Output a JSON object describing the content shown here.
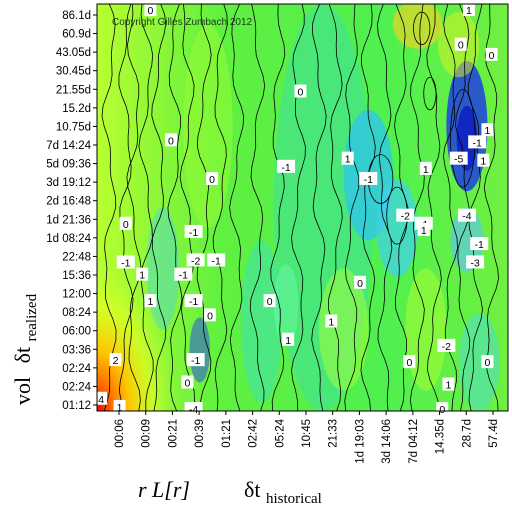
{
  "chart_data": {
    "type": "heatmap",
    "copyright": "Copyright Gilles Zumbach 2012",
    "y_ticks": [
      "86.1d",
      "60.9d",
      "43.05d",
      "30.45d",
      "21.55d",
      "15.2d",
      "10.75d",
      "7d 14:24",
      "5d 09:36",
      "3d 19:12",
      "2d 16:48",
      "1d 21:36",
      "1d 08:24",
      "22:48",
      "15:36",
      "12:00",
      "08:24",
      "06:00",
      "03:36",
      "02:24",
      "02:24",
      "01:12"
    ],
    "x_ticks": [
      "00:06",
      "00:09",
      "00:21",
      "00:39",
      "01:21",
      "02:42",
      "05:24",
      "10:45",
      "21:33",
      "1d 19:03",
      "3d 14:06",
      "7d 04:12",
      "14.35d",
      "28.7d",
      "57.4d"
    ],
    "xlabel": {
      "var": "r L[r]",
      "dt": "δt",
      "sub": "historical"
    },
    "ylabel": {
      "var": "vol",
      "dt": "δt",
      "sub": "realized"
    },
    "contour_labels": [
      {
        "t": "0",
        "x": 0.13,
        "y": 0.015
      },
      {
        "t": "1",
        "x": 0.905,
        "y": 0.015
      },
      {
        "t": "0",
        "x": 0.885,
        "y": 0.1
      },
      {
        "t": "0",
        "x": 0.96,
        "y": 0.125
      },
      {
        "t": "0",
        "x": 0.495,
        "y": 0.215
      },
      {
        "t": "1",
        "x": 0.95,
        "y": 0.31
      },
      {
        "t": "0",
        "x": 0.18,
        "y": 0.335
      },
      {
        "t": "-1",
        "x": 0.925,
        "y": 0.34
      },
      {
        "t": "1",
        "x": 0.61,
        "y": 0.38
      },
      {
        "t": "-5",
        "x": 0.88,
        "y": 0.38
      },
      {
        "t": "1",
        "x": 0.94,
        "y": 0.385
      },
      {
        "t": "-1",
        "x": 0.46,
        "y": 0.4
      },
      {
        "t": "1",
        "x": 0.8,
        "y": 0.405
      },
      {
        "t": "0",
        "x": 0.28,
        "y": 0.43
      },
      {
        "t": "-1",
        "x": 0.66,
        "y": 0.43
      },
      {
        "t": "-2",
        "x": 0.75,
        "y": 0.52
      },
      {
        "t": "-1",
        "x": 0.795,
        "y": 0.54
      },
      {
        "t": "-4",
        "x": 0.9,
        "y": 0.52
      },
      {
        "t": "0",
        "x": 0.07,
        "y": 0.54
      },
      {
        "t": "-1",
        "x": 0.235,
        "y": 0.56
      },
      {
        "t": "1",
        "x": 0.795,
        "y": 0.555
      },
      {
        "t": "-1",
        "x": 0.93,
        "y": 0.59
      },
      {
        "t": "-2",
        "x": 0.24,
        "y": 0.63
      },
      {
        "t": "-1",
        "x": 0.29,
        "y": 0.63
      },
      {
        "t": "-1",
        "x": 0.07,
        "y": 0.635
      },
      {
        "t": "-3",
        "x": 0.92,
        "y": 0.635
      },
      {
        "t": "1",
        "x": 0.11,
        "y": 0.665
      },
      {
        "t": "-1",
        "x": 0.21,
        "y": 0.665
      },
      {
        "t": "0",
        "x": 0.64,
        "y": 0.685
      },
      {
        "t": "1",
        "x": 0.13,
        "y": 0.73
      },
      {
        "t": "-1",
        "x": 0.235,
        "y": 0.73
      },
      {
        "t": "0",
        "x": 0.42,
        "y": 0.73
      },
      {
        "t": "0",
        "x": 0.275,
        "y": 0.765
      },
      {
        "t": "1",
        "x": 0.57,
        "y": 0.78
      },
      {
        "t": "1",
        "x": 0.465,
        "y": 0.825
      },
      {
        "t": "-2",
        "x": 0.85,
        "y": 0.84
      },
      {
        "t": "2",
        "x": 0.045,
        "y": 0.875
      },
      {
        "t": "-1",
        "x": 0.24,
        "y": 0.875
      },
      {
        "t": "0",
        "x": 0.76,
        "y": 0.88
      },
      {
        "t": "0",
        "x": 0.95,
        "y": 0.88
      },
      {
        "t": "0",
        "x": 0.22,
        "y": 0.93
      },
      {
        "t": "1",
        "x": 0.855,
        "y": 0.935
      },
      {
        "t": "4",
        "x": 0.01,
        "y": 0.97
      },
      {
        "t": "1",
        "x": 0.055,
        "y": 0.99
      },
      {
        "t": "-4",
        "x": 0.235,
        "y": 0.995
      },
      {
        "t": "0",
        "x": 0.84,
        "y": 0.995
      }
    ]
  }
}
